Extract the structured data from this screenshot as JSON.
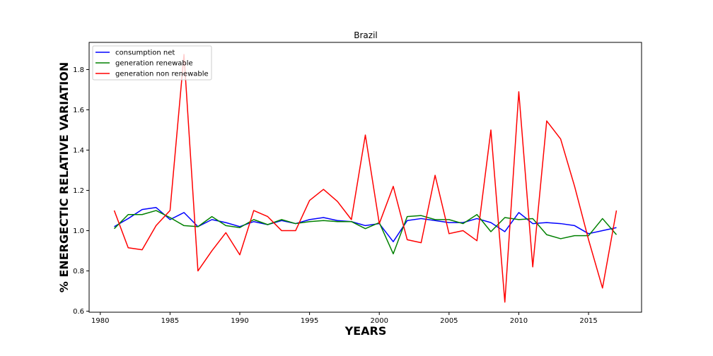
{
  "chart_data": {
    "type": "line",
    "title": "Brazil",
    "xlabel": "YEARS",
    "ylabel": "% ENERGECTIC RELATIVE VARIATION",
    "xlim": [
      1979.2,
      2018.8
    ],
    "ylim": [
      0.595,
      1.935
    ],
    "xticks": [
      1980,
      1985,
      1990,
      1995,
      2000,
      2005,
      2010,
      2015
    ],
    "yticks": [
      0.6,
      0.8,
      1.0,
      1.2,
      1.4,
      1.6,
      1.8
    ],
    "ytick_labels": [
      "0.6",
      "0.8",
      "1.0",
      "1.2",
      "1.4",
      "1.6",
      "1.8"
    ],
    "grid": false,
    "legend_position": "top-left",
    "x": [
      1981,
      1982,
      1983,
      1984,
      1985,
      1986,
      1987,
      1988,
      1989,
      1990,
      1991,
      1992,
      1993,
      1994,
      1995,
      1996,
      1997,
      1998,
      1999,
      2000,
      2001,
      2002,
      2003,
      2004,
      2005,
      2006,
      2007,
      2008,
      2009,
      2010,
      2011,
      2012,
      2013,
      2014,
      2015,
      2016,
      2017
    ],
    "series": [
      {
        "name": "consumption net",
        "color": "#0000ff",
        "values": [
          1.02,
          1.06,
          1.105,
          1.115,
          1.055,
          1.09,
          1.02,
          1.055,
          1.04,
          1.02,
          1.045,
          1.03,
          1.05,
          1.035,
          1.055,
          1.065,
          1.05,
          1.045,
          1.025,
          1.035,
          0.945,
          1.05,
          1.06,
          1.05,
          1.04,
          1.04,
          1.06,
          1.04,
          0.995,
          1.09,
          1.035,
          1.04,
          1.035,
          1.025,
          0.985,
          1.0,
          1.015
        ]
      },
      {
        "name": "generation renewable",
        "color": "#008000",
        "values": [
          1.01,
          1.08,
          1.08,
          1.1,
          1.065,
          1.025,
          1.02,
          1.07,
          1.025,
          1.015,
          1.055,
          1.03,
          1.055,
          1.035,
          1.045,
          1.05,
          1.045,
          1.045,
          1.01,
          1.04,
          0.885,
          1.07,
          1.075,
          1.055,
          1.055,
          1.035,
          1.08,
          0.995,
          1.065,
          1.055,
          1.06,
          0.98,
          0.96,
          0.975,
          0.975,
          1.06,
          0.98
        ]
      },
      {
        "name": "generation non renewable",
        "color": "#ff0000",
        "values": [
          1.1,
          0.915,
          0.905,
          1.025,
          1.1,
          1.875,
          0.8,
          0.9,
          0.99,
          0.88,
          1.1,
          1.07,
          1.0,
          1.0,
          1.15,
          1.205,
          1.145,
          1.055,
          1.475,
          1.035,
          1.22,
          0.955,
          0.94,
          1.275,
          0.985,
          1.0,
          0.95,
          1.5,
          0.645,
          1.69,
          0.82,
          1.545,
          1.455,
          1.22,
          0.955,
          0.715,
          1.1
        ]
      }
    ]
  }
}
